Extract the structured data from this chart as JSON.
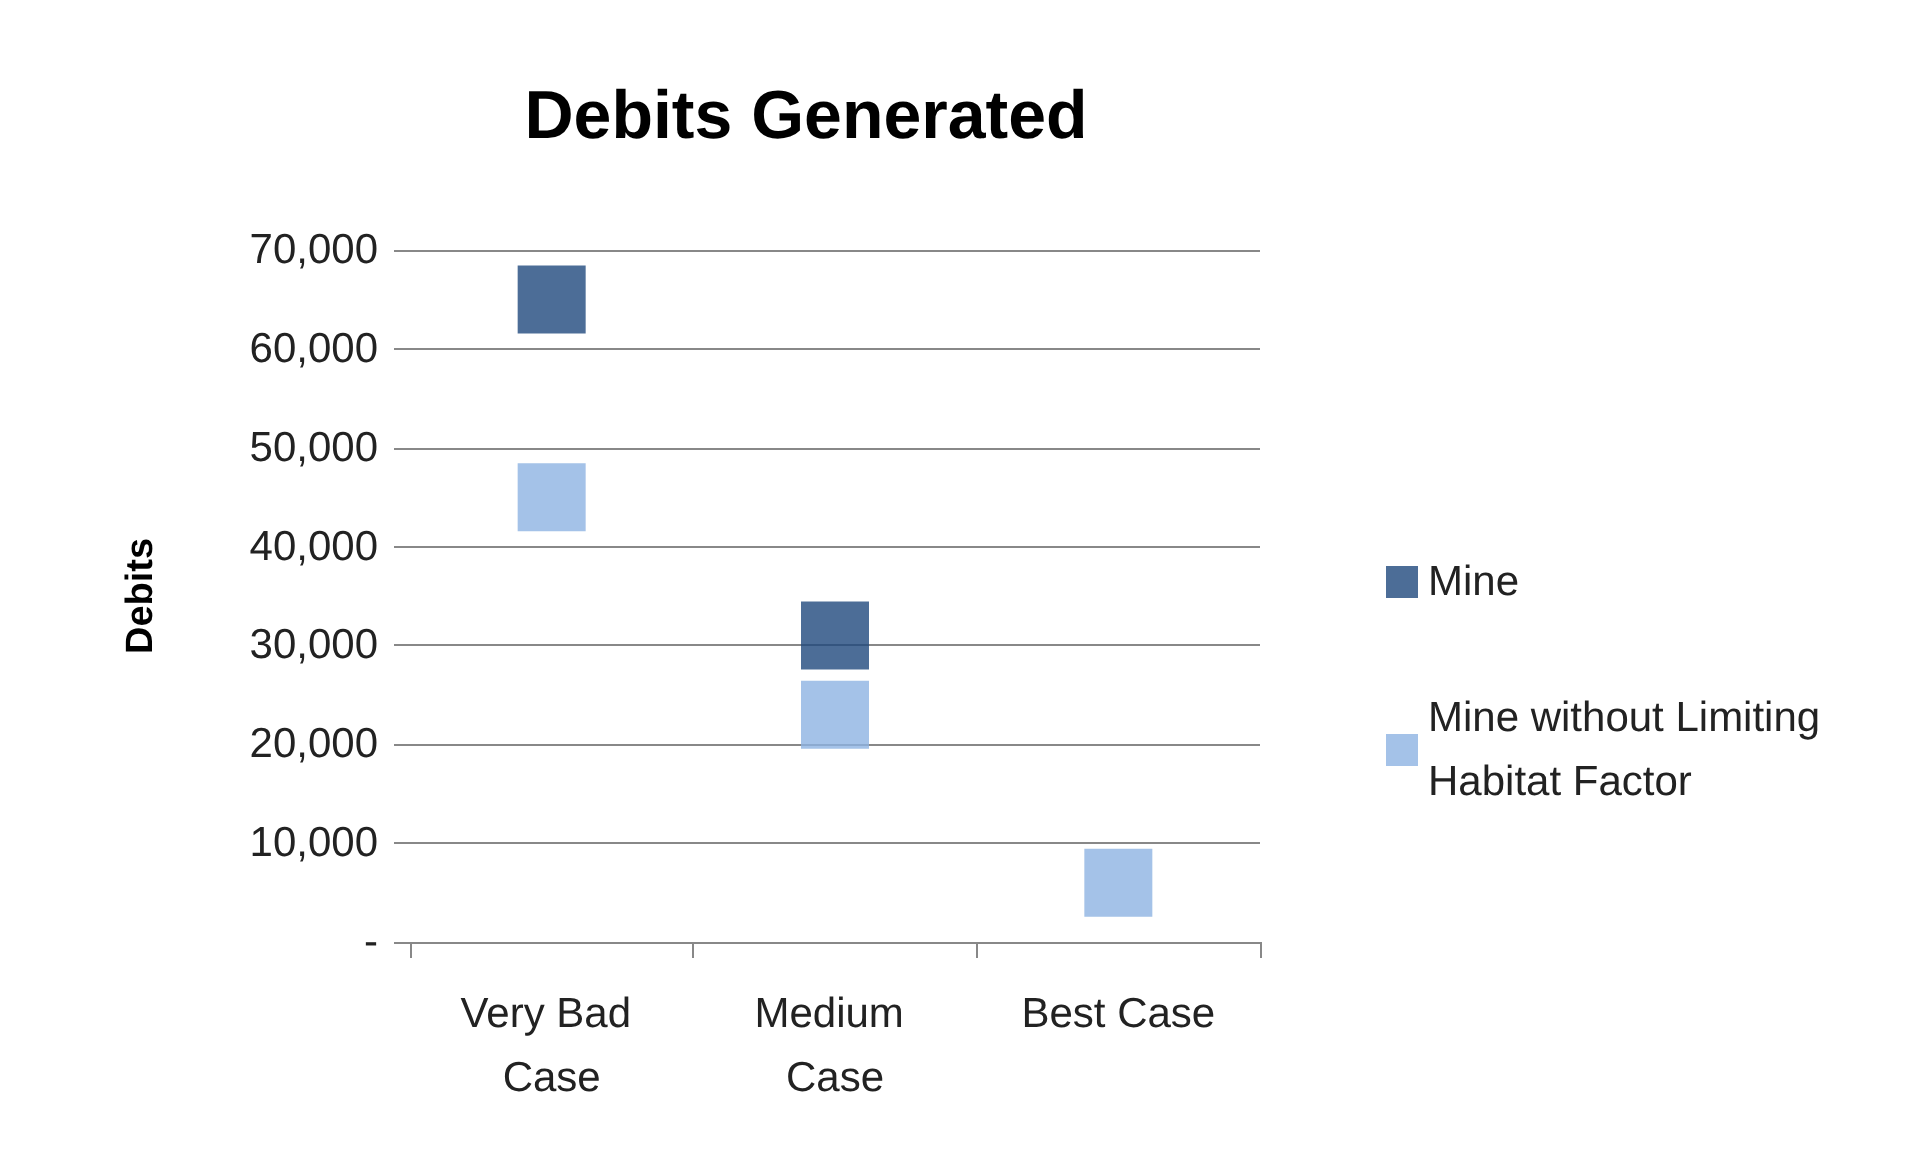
{
  "chart_data": {
    "type": "scatter",
    "title": "Debits Generated",
    "ylabel": "Debits",
    "categories": [
      "Very Bad Case",
      "Medium Case",
      "Best Case"
    ],
    "series": [
      {
        "name": "Mine",
        "color": "#1f497d",
        "values": [
          65000,
          31000,
          null
        ]
      },
      {
        "name": "Mine without Limiting Habitat Factor",
        "color": "#8db3e2",
        "values": [
          45000,
          23000,
          6000
        ]
      }
    ],
    "ylim": [
      0,
      70000
    ],
    "yticks": [
      {
        "value": 0,
        "label": "-"
      },
      {
        "value": 10000,
        "label": "10,000"
      },
      {
        "value": 20000,
        "label": "20,000"
      },
      {
        "value": 30000,
        "label": "30,000"
      },
      {
        "value": 40000,
        "label": "40,000"
      },
      {
        "value": 50000,
        "label": "50,000"
      },
      {
        "value": 60000,
        "label": "60,000"
      },
      {
        "value": 70000,
        "label": "70,000"
      }
    ],
    "grid": "y",
    "legend": "right",
    "marker": "square"
  }
}
